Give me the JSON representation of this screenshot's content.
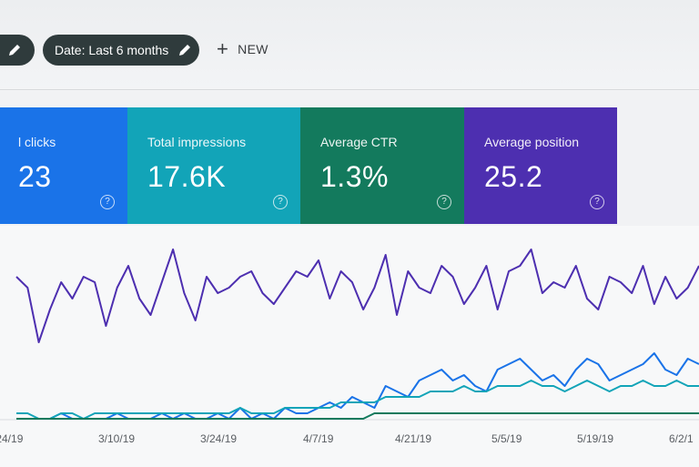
{
  "toolbar": {
    "date_filter_label": "Date: Last 6 months",
    "new_label": "NEW"
  },
  "metrics": [
    {
      "key": "clicks",
      "label": "l clicks",
      "value": "23",
      "help": "?"
    },
    {
      "key": "impressions",
      "label": "Total impressions",
      "value": "17.6K",
      "help": "?"
    },
    {
      "key": "ctr",
      "label": "Average CTR",
      "value": "1.3%",
      "help": "?"
    },
    {
      "key": "position",
      "label": "Average position",
      "value": "25.2",
      "help": "?"
    }
  ],
  "colors": {
    "clicks": "#1a73e8",
    "impressions": "#12a4b8",
    "ctr": "#137a5d",
    "position": "#4d2fb0"
  },
  "icons": [
    "pencil-icon",
    "plus-icon",
    "help-icon"
  ],
  "chart_data": {
    "type": "line",
    "x_tick_labels": [
      "/24/19",
      "3/10/19",
      "3/24/19",
      "4/7/19",
      "4/21/19",
      "5/5/19",
      "5/19/19",
      "6/2/1"
    ],
    "series": [
      {
        "color": "#4d2fb0",
        "values": [
          26,
          24,
          14,
          20,
          25,
          22,
          26,
          25,
          17,
          24,
          28,
          22,
          19,
          25,
          31,
          23,
          18,
          26,
          23,
          24,
          26,
          27,
          23,
          21,
          24,
          27,
          26,
          29,
          22,
          27,
          25,
          20,
          24,
          30,
          19,
          27,
          24,
          23,
          28,
          26,
          21,
          24,
          28,
          20,
          27,
          28,
          31,
          23,
          25,
          24,
          28,
          22,
          20,
          26,
          25,
          23,
          28,
          21,
          26,
          22,
          24,
          28
        ]
      },
      {
        "color": "#1a73e8",
        "values": [
          0,
          0,
          0,
          0,
          1,
          0,
          0,
          0,
          0,
          1,
          0,
          0,
          0,
          1,
          0,
          1,
          0,
          0,
          1,
          0,
          2,
          0,
          1,
          0,
          2,
          1,
          1,
          2,
          3,
          2,
          4,
          3,
          2,
          6,
          5,
          4,
          7,
          8,
          9,
          7,
          8,
          6,
          5,
          9,
          10,
          11,
          9,
          7,
          8,
          6,
          9,
          11,
          10,
          7,
          8,
          9,
          10,
          12,
          9,
          8,
          11,
          10
        ]
      },
      {
        "color": "#12a4b8",
        "values": [
          1,
          1,
          0,
          0,
          1,
          1,
          0,
          1,
          1,
          1,
          1,
          1,
          1,
          1,
          1,
          1,
          1,
          1,
          1,
          1,
          2,
          1,
          1,
          1,
          2,
          2,
          2,
          2,
          2,
          3,
          3,
          3,
          3,
          4,
          4,
          4,
          4,
          5,
          5,
          5,
          6,
          5,
          5,
          6,
          6,
          6,
          7,
          6,
          6,
          5,
          6,
          7,
          6,
          5,
          6,
          6,
          7,
          6,
          6,
          7,
          6,
          6
        ]
      },
      {
        "color": "#137a5d",
        "values": [
          0,
          0,
          0,
          0,
          0,
          0,
          0,
          0,
          0,
          0,
          0,
          0,
          0,
          0,
          0,
          0,
          0,
          0,
          0,
          0,
          0,
          0,
          0,
          0,
          0,
          0,
          0,
          0,
          0,
          0,
          0,
          0,
          1,
          1,
          1,
          1,
          1,
          1,
          1,
          1,
          1,
          1,
          1,
          1,
          1,
          1,
          1,
          1,
          1,
          1,
          1,
          1,
          1,
          1,
          1,
          1,
          1,
          1,
          1,
          1,
          1,
          1
        ]
      }
    ],
    "ylim": [
      0,
      32
    ],
    "grid": false,
    "legend": "none"
  }
}
